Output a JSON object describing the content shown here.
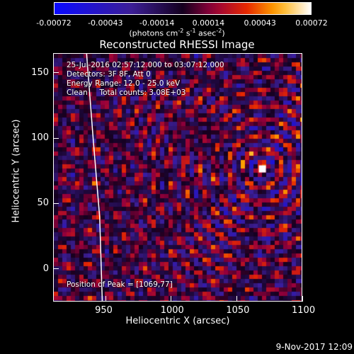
{
  "colorbar": {
    "ticks": [
      "-0.00072",
      "-0.00043",
      "-0.00014",
      "0.00014",
      "0.00043",
      "0.00072"
    ],
    "units_text": "(photons cm",
    "units_exp1": "-2",
    "units_mid": " s",
    "units_exp2": "-1",
    "units_tail": " asec",
    "units_exp3": "-2",
    "units_close": ")"
  },
  "title": "Reconstructed RHESSI Image",
  "info": {
    "time": "25-Jul-2016 02:57:12.000 to 03:07:12.000",
    "detectors": "Detectors: 3F 8F, Att 0",
    "energy": "Energy Range: 12.0 - 25.0 keV",
    "method": "Clean     Total counts: 3.08E+03"
  },
  "peak": "Position of Peak = [1069,77]",
  "timestamp": "9-Nov-2017 12:09",
  "chart_data": {
    "type": "heatmap",
    "title": "Reconstructed RHESSI Image",
    "xlabel": "Heliocentric X (arcsec)",
    "ylabel": "Heliocentric Y (arcsec)",
    "xlim": [
      910,
      1100
    ],
    "ylim": [
      -25,
      165
    ],
    "xticks": [
      950,
      1000,
      1050,
      1100
    ],
    "yticks": [
      0,
      50,
      100,
      150
    ],
    "color_range": [
      -0.00072,
      0.00072
    ],
    "colormap": "blue-purple-red-yellow-white",
    "peak_position": [
      1069,
      77
    ],
    "limb_line": [
      [
        935,
        165
      ],
      [
        940,
        100
      ],
      [
        945,
        40
      ],
      [
        947,
        -25
      ]
    ]
  }
}
